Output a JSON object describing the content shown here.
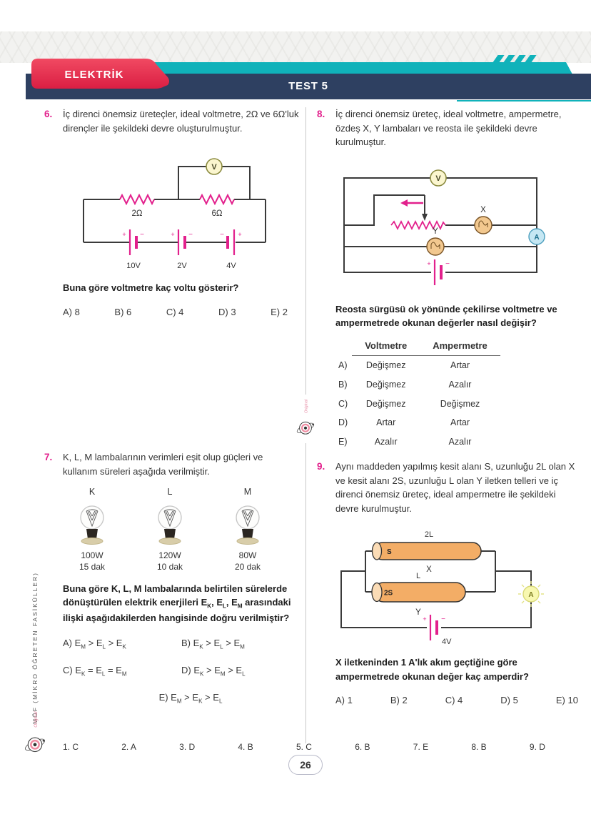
{
  "header": {
    "subject": "ELEKTRİK",
    "test": "TEST 5"
  },
  "side": {
    "vertical_text": "MÖF (MİKRO ÖĞRETEN FASİKÜLLER)",
    "brand_script": "Original"
  },
  "q6": {
    "number": "6.",
    "text": "İç direnci önemsiz üreteçler, ideal voltmetre, 2Ω ve 6Ω'luk dirençler ile şekildeki devre oluşturulmuştur.",
    "circuit": {
      "meter": "V",
      "r1": "2Ω",
      "r2": "6Ω",
      "b1": "10V",
      "b2": "2V",
      "b3": "4V"
    },
    "question": "Buna göre voltmetre kaç voltu gösterir?",
    "options": [
      "A) 8",
      "B) 6",
      "C) 4",
      "D) 3",
      "E) 2"
    ]
  },
  "q7": {
    "number": "7.",
    "text": "K, L, M lambalarının verimleri eşit olup güçleri ve kullanım süreleri aşağıda verilmiştir.",
    "bulbs": [
      {
        "label": "K",
        "power": "100W",
        "time": "15 dak"
      },
      {
        "label": "L",
        "power": "120W",
        "time": "10 dak"
      },
      {
        "label": "M",
        "power": "80W",
        "time": "20 dak"
      }
    ],
    "question": "Buna göre K, L, M lambalarında belirtilen sürelerde dönüştürülen elektrik enerjileri E_K, E_L, E_M arasındaki ilişki aşağıdakilerden hangisinde doğru verilmiştir?",
    "options": [
      "A) E_M > E_L > E_K",
      "B) E_K > E_L > E_M",
      "C) E_K = E_L = E_M",
      "D) E_K > E_M > E_L",
      "E) E_M > E_K > E_L"
    ]
  },
  "q8": {
    "number": "8.",
    "text": "İç direnci önemsiz üreteç, ideal voltmetre, ampermetre, özdeş X, Y lambaları ve reosta ile şekildeki devre kurulmuştur.",
    "circuit": {
      "meter_v": "V",
      "lamp_x": "X",
      "lamp_y": "Y",
      "meter_a": "A"
    },
    "question": "Reosta sürgüsü ok yönünde çekilirse voltmetre ve ampermetrede okunan değerler nasıl değişir?",
    "table": {
      "headers": [
        "Voltmetre",
        "Ampermetre"
      ],
      "rows": [
        {
          "label": "A)",
          "v": "Değişmez",
          "a": "Artar"
        },
        {
          "label": "B)",
          "v": "Değişmez",
          "a": "Azalır"
        },
        {
          "label": "C)",
          "v": "Değişmez",
          "a": "Değişmez"
        },
        {
          "label": "D)",
          "v": "Artar",
          "a": "Artar"
        },
        {
          "label": "E)",
          "v": "Azalır",
          "a": "Azalır"
        }
      ]
    }
  },
  "q9": {
    "number": "9.",
    "text": "Aynı maddeden yapılmış kesit alanı S, uzunluğu 2L olan X ve kesit alanı 2S, uzunluğu L olan Y iletken telleri ve iç direnci önemsiz üreteç, ideal ampermetre ile şekildeki devre kurulmuştur.",
    "circuit": {
      "top_len": "2L",
      "top_area": "S",
      "top_name": "X",
      "bot_len": "L",
      "bot_area": "2S",
      "bot_name": "Y",
      "battery": "4V",
      "meter": "A"
    },
    "question": "X iletkeninden 1 A'lık akım geçtiğine göre ampermetrede okunan değer kaç amperdir?",
    "options": [
      "A) 1",
      "B) 2",
      "C) 4",
      "D) 5",
      "E) 10"
    ]
  },
  "footer": {
    "answers": [
      "1. C",
      "2. A",
      "3. D",
      "4. B",
      "5. C",
      "6. B",
      "7. E",
      "8. B",
      "9. D"
    ],
    "page": "26"
  },
  "colors": {
    "magenta": "#e2208c",
    "navy": "#2e4061",
    "teal": "#10b2ba",
    "red": "#e82c4c"
  }
}
